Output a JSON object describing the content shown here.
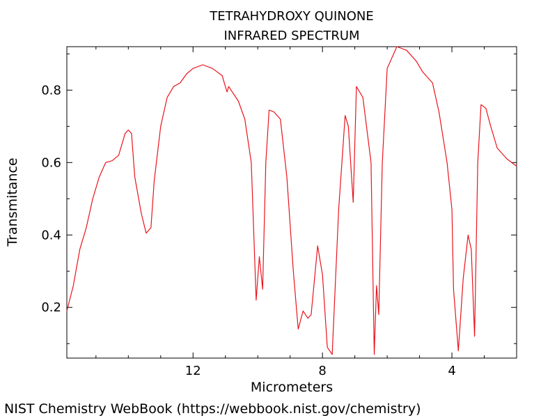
{
  "footer": "NIST Chemistry WebBook (https://webbook.nist.gov/chemistry)",
  "chart_data": {
    "type": "line",
    "title": "TETRAHYDROXY QUINONE",
    "subtitle": "INFRARED SPECTRUM",
    "xlabel": "Micrometers",
    "ylabel": "Transmitance",
    "x_reversed": true,
    "xlim": [
      15.9,
      2.0
    ],
    "ylim": [
      0.06,
      0.92
    ],
    "x_ticks": [
      12,
      8,
      4
    ],
    "y_ticks": [
      0.2,
      0.4,
      0.6,
      0.8
    ],
    "x_ticks_minor": [
      15,
      14,
      13,
      11,
      10,
      9,
      7,
      6,
      5,
      3
    ],
    "y_ticks_minor": [
      0.1,
      0.3,
      0.5,
      0.7,
      0.9
    ],
    "grid": false,
    "series": [
      {
        "color": "#e8141c",
        "points": [
          [
            15.9,
            0.19
          ],
          [
            15.7,
            0.26
          ],
          [
            15.5,
            0.36
          ],
          [
            15.3,
            0.42
          ],
          [
            15.1,
            0.5
          ],
          [
            14.9,
            0.56
          ],
          [
            14.7,
            0.6
          ],
          [
            14.5,
            0.605
          ],
          [
            14.3,
            0.62
          ],
          [
            14.1,
            0.68
          ],
          [
            14.0,
            0.69
          ],
          [
            13.9,
            0.68
          ],
          [
            13.8,
            0.56
          ],
          [
            13.6,
            0.46
          ],
          [
            13.45,
            0.405
          ],
          [
            13.3,
            0.42
          ],
          [
            13.2,
            0.55
          ],
          [
            13.0,
            0.7
          ],
          [
            12.8,
            0.78
          ],
          [
            12.6,
            0.81
          ],
          [
            12.4,
            0.82
          ],
          [
            12.2,
            0.845
          ],
          [
            12.0,
            0.86
          ],
          [
            11.7,
            0.87
          ],
          [
            11.4,
            0.86
          ],
          [
            11.1,
            0.84
          ],
          [
            11.0,
            0.81
          ],
          [
            10.95,
            0.795
          ],
          [
            10.9,
            0.81
          ],
          [
            10.6,
            0.77
          ],
          [
            10.4,
            0.72
          ],
          [
            10.2,
            0.6
          ],
          [
            10.05,
            0.22
          ],
          [
            9.95,
            0.34
          ],
          [
            9.85,
            0.25
          ],
          [
            9.75,
            0.6
          ],
          [
            9.65,
            0.745
          ],
          [
            9.5,
            0.74
          ],
          [
            9.3,
            0.72
          ],
          [
            9.1,
            0.56
          ],
          [
            8.9,
            0.3
          ],
          [
            8.75,
            0.14
          ],
          [
            8.6,
            0.19
          ],
          [
            8.45,
            0.17
          ],
          [
            8.35,
            0.18
          ],
          [
            8.15,
            0.37
          ],
          [
            8.0,
            0.29
          ],
          [
            7.85,
            0.09
          ],
          [
            7.7,
            0.07
          ],
          [
            7.5,
            0.47
          ],
          [
            7.3,
            0.73
          ],
          [
            7.2,
            0.7
          ],
          [
            7.05,
            0.49
          ],
          [
            6.95,
            0.81
          ],
          [
            6.75,
            0.78
          ],
          [
            6.5,
            0.6
          ],
          [
            6.4,
            0.07
          ],
          [
            6.33,
            0.26
          ],
          [
            6.26,
            0.18
          ],
          [
            6.15,
            0.6
          ],
          [
            6.0,
            0.86
          ],
          [
            5.7,
            0.92
          ],
          [
            5.4,
            0.91
          ],
          [
            5.1,
            0.88
          ],
          [
            4.9,
            0.85
          ],
          [
            4.6,
            0.82
          ],
          [
            4.4,
            0.74
          ],
          [
            4.15,
            0.6
          ],
          [
            4.0,
            0.47
          ],
          [
            3.95,
            0.25
          ],
          [
            3.8,
            0.08
          ],
          [
            3.65,
            0.28
          ],
          [
            3.5,
            0.4
          ],
          [
            3.4,
            0.36
          ],
          [
            3.3,
            0.12
          ],
          [
            3.2,
            0.6
          ],
          [
            3.1,
            0.76
          ],
          [
            2.95,
            0.75
          ],
          [
            2.8,
            0.7
          ],
          [
            2.6,
            0.64
          ],
          [
            2.3,
            0.61
          ],
          [
            2.0,
            0.59
          ]
        ]
      }
    ]
  }
}
